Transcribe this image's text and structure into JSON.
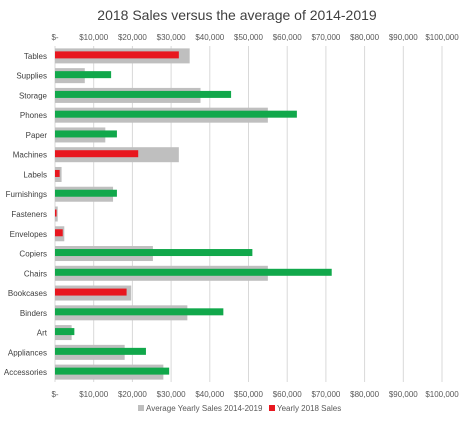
{
  "chart_data": {
    "type": "bar",
    "orientation": "horizontal",
    "title": "2018 Sales versus the average of 2014-2019",
    "categories": [
      "Tables",
      "Supplies",
      "Storage",
      "Phones",
      "Paper",
      "Machines",
      "Labels",
      "Furnishings",
      "Fasteners",
      "Envelopes",
      "Copiers",
      "Chairs",
      "Bookcases",
      "Binders",
      "Art",
      "Appliances",
      "Accessories"
    ],
    "series": [
      {
        "name": "Average Yearly Sales 2014-2019",
        "color": "#bfbfbf",
        "values": [
          34800,
          7700,
          37600,
          55000,
          13000,
          32000,
          1700,
          15000,
          700,
          2400,
          25300,
          55000,
          19700,
          34200,
          4300,
          18000,
          28000
        ]
      },
      {
        "name": "Yearly 2018 Sales",
        "color_highlight": "#e8171f",
        "color_normal": "#11a84b",
        "values": [
          32000,
          14500,
          45500,
          62500,
          16000,
          21500,
          1200,
          16000,
          400,
          2000,
          51000,
          71500,
          18500,
          43500,
          5000,
          23500,
          29500
        ],
        "below_average_red": [
          true,
          false,
          false,
          false,
          false,
          true,
          true,
          false,
          true,
          true,
          false,
          false,
          true,
          false,
          false,
          false,
          false
        ]
      }
    ],
    "x_ticks": [
      "$-",
      "$10,000",
      "$20,000",
      "$30,000",
      "$40,000",
      "$50,000",
      "$60,000",
      "$70,000",
      "$80,000",
      "$90,000",
      "$100,000"
    ],
    "xlim": [
      0,
      100000
    ],
    "grid": true,
    "legend_position": "bottom"
  }
}
